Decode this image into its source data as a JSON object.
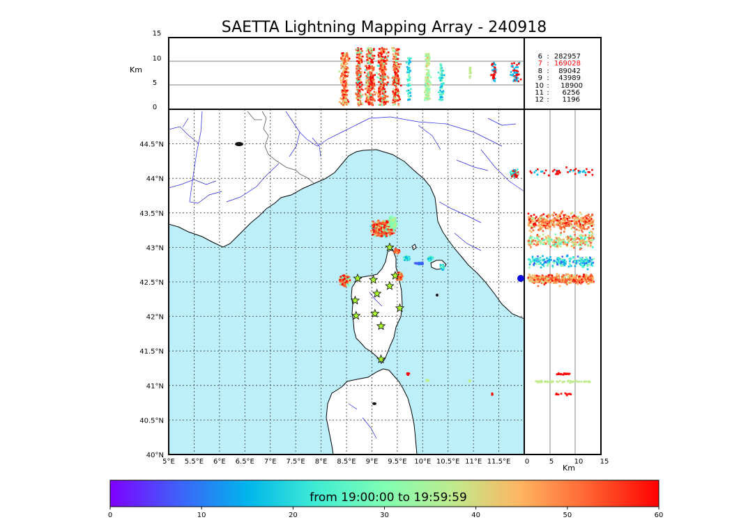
{
  "title": "SAETTA Lightning Mapping Array - 240918",
  "colors": {
    "sea": "#bdeffb",
    "land": "#ffffff",
    "river": "#2222dd",
    "grid": "#333333",
    "station_fill": "#adff2f"
  },
  "altitude_panel": {
    "ylabel": "Km",
    "yticks": [
      "15",
      "10",
      "5",
      "0"
    ]
  },
  "side_panel": {
    "xlabel": "Km",
    "xticks": [
      "0",
      "5",
      "10",
      "15"
    ]
  },
  "map": {
    "lon_ticks": [
      "5°E",
      "5.5°E",
      "6°E",
      "6.5°E",
      "7°E",
      "7.5°E",
      "8°E",
      "8.5°E",
      "9°E",
      "9.5°E",
      "10°E",
      "10.5°E",
      "11°E",
      "11.5°E"
    ],
    "lat_ticks": [
      "44.5°N",
      "44°N",
      "43.5°N",
      "43°N",
      "42.5°N",
      "42°N",
      "41.5°N",
      "41°N",
      "40.5°N",
      "40°N"
    ],
    "lon_range": [
      5,
      12
    ],
    "lat_range": [
      40,
      45
    ],
    "stations": [
      {
        "lon": 9.35,
        "lat": 43.0
      },
      {
        "lon": 8.72,
        "lat": 42.55
      },
      {
        "lon": 9.03,
        "lat": 42.53
      },
      {
        "lon": 9.46,
        "lat": 42.59
      },
      {
        "lon": 9.35,
        "lat": 42.44
      },
      {
        "lon": 9.1,
        "lat": 42.33
      },
      {
        "lon": 8.67,
        "lat": 42.23
      },
      {
        "lon": 9.55,
        "lat": 42.12
      },
      {
        "lon": 8.69,
        "lat": 42.01
      },
      {
        "lon": 9.06,
        "lat": 42.04
      },
      {
        "lon": 9.18,
        "lat": 41.86
      },
      {
        "lon": 9.18,
        "lat": 41.38
      }
    ]
  },
  "counts": [
    {
      "label": "6",
      "sep": ":",
      "value": "282957",
      "color": "#000000"
    },
    {
      "label": "7",
      "sep": ":",
      "value": "169028",
      "color": "#ff0000"
    },
    {
      "label": "8",
      "sep": ":",
      "value": "89042",
      "color": "#000000"
    },
    {
      "label": "9",
      "sep": ":",
      "value": "43989",
      "color": "#000000"
    },
    {
      "label": "10",
      "sep": ":",
      "value": "18900",
      "color": "#000000"
    },
    {
      "label": "11",
      "sep": ":",
      "value": "6256",
      "color": "#000000"
    },
    {
      "label": "12",
      "sep": ":",
      "value": "1196",
      "color": "#000000"
    }
  ],
  "colorbar": {
    "label": "from 19:00:00 to 19:59:59",
    "ticks": [
      "0",
      "10",
      "20",
      "30",
      "40",
      "50",
      "60"
    ],
    "colors": [
      "#7f00ff",
      "#3f61fa",
      "#00b5eb",
      "#40ecd4",
      "#80feb3",
      "#c0eb8d",
      "#ffb360",
      "#ff6131",
      "#ff0000"
    ]
  }
}
